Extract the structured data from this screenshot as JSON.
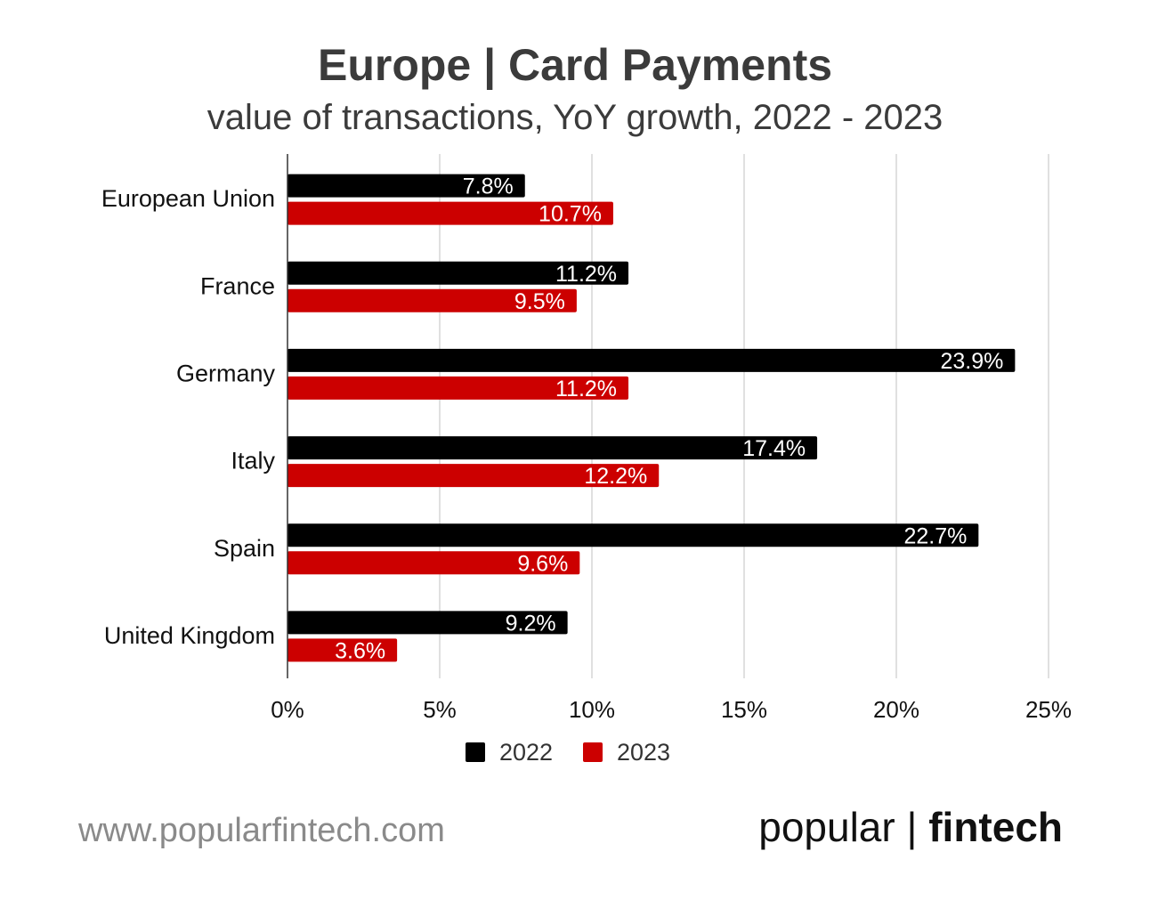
{
  "title": "Europe | Card Payments",
  "subtitle": "value of transactions, YoY growth, 2022 - 2023",
  "footer": {
    "url": "www.popularfintech.com",
    "brand_left": "popular",
    "brand_sep": "|",
    "brand_right": "fintech"
  },
  "chart_data": {
    "type": "bar",
    "orientation": "horizontal",
    "categories": [
      "European Union",
      "France",
      "Germany",
      "Italy",
      "Spain",
      "United Kingdom"
    ],
    "series": [
      {
        "name": "2022",
        "color": "#000000",
        "values": [
          7.8,
          11.2,
          23.9,
          17.4,
          22.7,
          9.2
        ],
        "labels": [
          "7.8%",
          "11.2%",
          "23.9%",
          "17.4%",
          "22.7%",
          "9.2%"
        ]
      },
      {
        "name": "2023",
        "color": "#cc0000",
        "values": [
          10.7,
          9.5,
          11.2,
          12.2,
          9.6,
          3.6
        ],
        "labels": [
          "10.7%",
          "9.5%",
          "11.2%",
          "12.2%",
          "9.6%",
          "3.6%"
        ]
      }
    ],
    "xlim": [
      0,
      25
    ],
    "xticks": [
      0,
      5,
      10,
      15,
      20,
      25
    ],
    "xtick_labels": [
      "0%",
      "5%",
      "10%",
      "15%",
      "20%",
      "25%"
    ],
    "grid": true,
    "legend": "bottom"
  }
}
